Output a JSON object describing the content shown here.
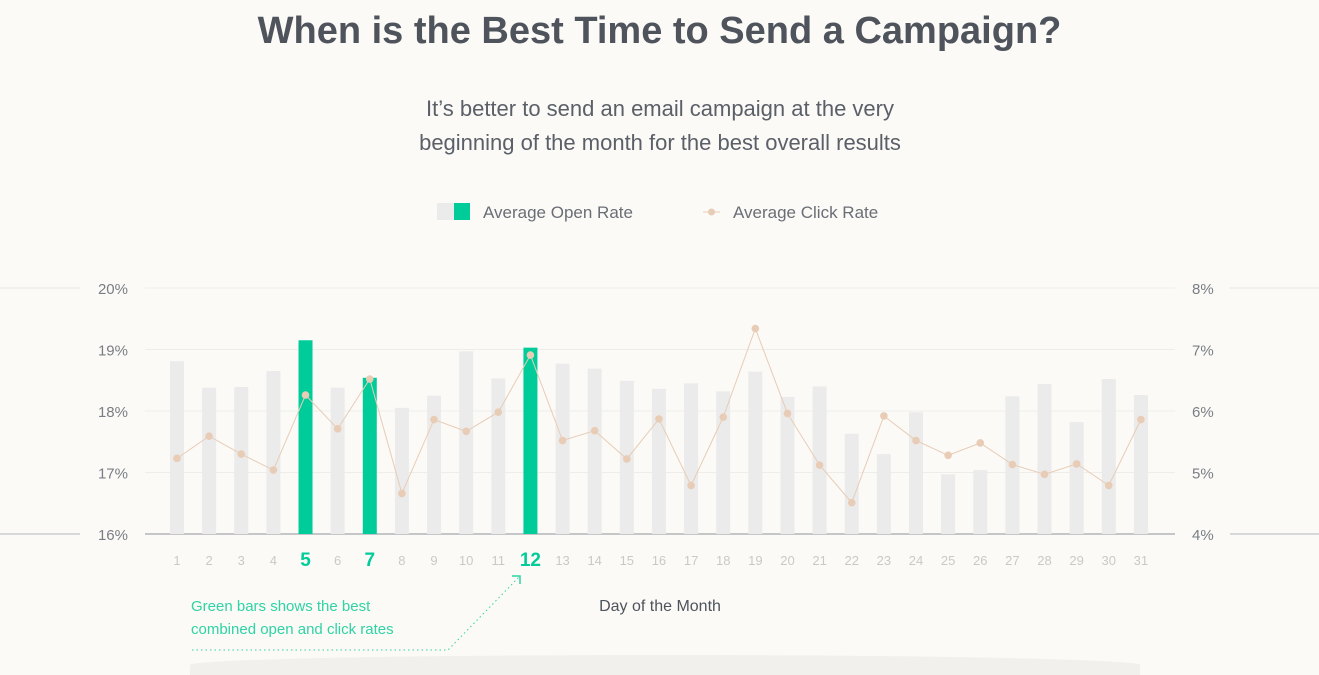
{
  "chart_data": {
    "type": "bar",
    "title": "When is the Best Time to Send a Campaign?",
    "subtitle_lines": [
      "It’s better to send an email campaign at the very",
      "beginning of the month for the best overall results"
    ],
    "xlabel": "Day of the Month",
    "categories": [
      "1",
      "2",
      "3",
      "4",
      "5",
      "6",
      "7",
      "8",
      "9",
      "10",
      "11",
      "12",
      "13",
      "14",
      "15",
      "16",
      "17",
      "18",
      "19",
      "20",
      "21",
      "22",
      "23",
      "24",
      "25",
      "26",
      "27",
      "28",
      "29",
      "30",
      "31"
    ],
    "highlighted": [
      "5",
      "7",
      "12"
    ],
    "left_axis": {
      "ticks": [
        "16%",
        "17%",
        "18%",
        "19%",
        "20%"
      ],
      "ylim": [
        16,
        20
      ]
    },
    "right_axis": {
      "ticks": [
        "4%",
        "5%",
        "6%",
        "7%",
        "8%"
      ],
      "ylim": [
        4,
        8
      ]
    },
    "series": [
      {
        "name": "Average Open Rate",
        "type": "bar",
        "axis": "left",
        "values": [
          18.81,
          18.38,
          18.39,
          18.65,
          19.15,
          18.38,
          18.54,
          18.05,
          18.25,
          18.97,
          18.53,
          19.03,
          18.77,
          18.69,
          18.49,
          18.36,
          18.45,
          18.32,
          18.64,
          18.23,
          18.4,
          17.63,
          17.3,
          17.98,
          16.97,
          17.04,
          18.24,
          18.44,
          17.82,
          18.52,
          18.26
        ]
      },
      {
        "name": "Average Click Rate",
        "type": "line",
        "axis": "right",
        "values": [
          5.23,
          5.59,
          5.3,
          5.04,
          6.26,
          5.71,
          6.52,
          4.66,
          5.86,
          5.67,
          5.98,
          6.91,
          5.52,
          5.68,
          5.22,
          5.87,
          4.79,
          5.9,
          7.34,
          5.96,
          5.12,
          4.51,
          5.92,
          5.52,
          5.28,
          5.48,
          5.13,
          4.97,
          5.14,
          4.79,
          5.86
        ]
      }
    ],
    "legend": {
      "position": "top-center",
      "items": [
        "Average Open Rate",
        "Average Click Rate"
      ]
    },
    "annotation": {
      "lines": [
        "Green bars shows the best",
        "combined open and click rates"
      ]
    },
    "grid": true,
    "colors": {
      "bar": "#ebebeb",
      "highlight": "#00cc99",
      "line": "#e8ccb6",
      "text": "#4e535c",
      "tick": "#c9c9c9"
    }
  }
}
